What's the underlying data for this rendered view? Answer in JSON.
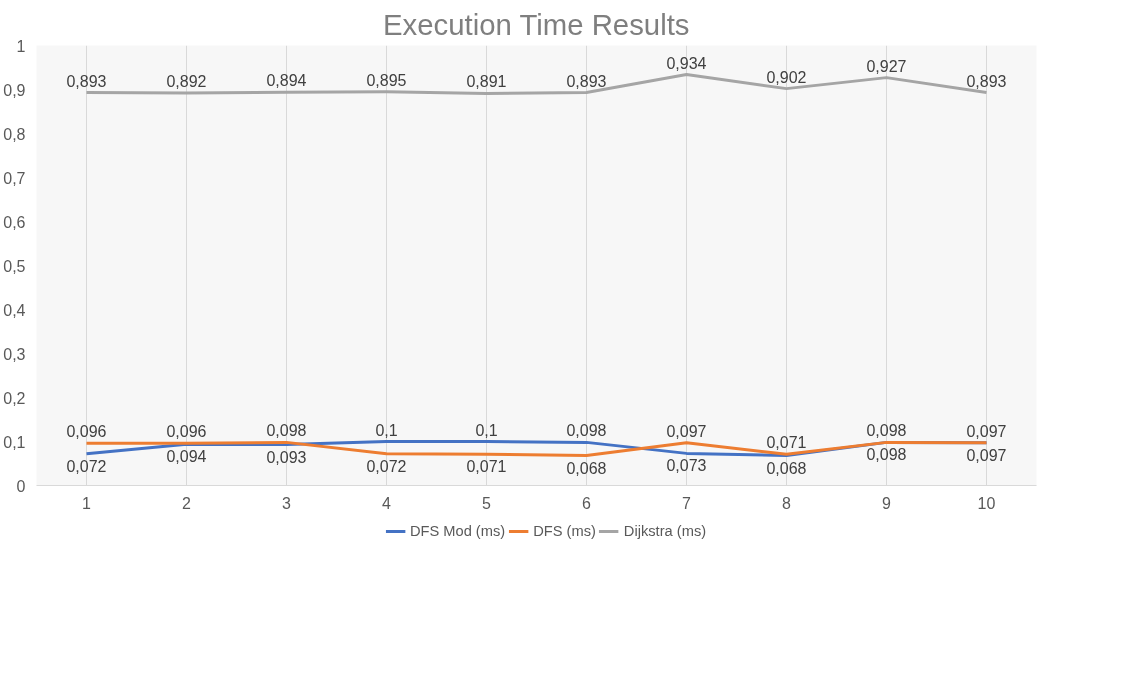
{
  "chart_data": {
    "type": "line",
    "title": "Execution Time Results",
    "categories": [
      "1",
      "2",
      "3",
      "4",
      "5",
      "6",
      "7",
      "8",
      "9",
      "10"
    ],
    "series": [
      {
        "name": "DFS Mod (ms)",
        "color": "#4472c4",
        "values": [
          0.072,
          0.094,
          0.093,
          0.1,
          0.1,
          0.098,
          0.073,
          0.068,
          0.098,
          0.097
        ],
        "value_labels": [
          "0,072",
          "0,094",
          "0,093",
          "0,1",
          "0,1",
          "0,098",
          "0,073",
          "0,068",
          "0,098",
          "0,097"
        ]
      },
      {
        "name": "DFS (ms)",
        "color": "#ed7d31",
        "values": [
          0.096,
          0.096,
          0.098,
          0.072,
          0.071,
          0.068,
          0.097,
          0.071,
          0.098,
          0.097
        ],
        "value_labels": [
          "0,096",
          "0,096",
          "0,098",
          "0,072",
          "0,071",
          "0,068",
          "0,097",
          "0,071",
          "0,098",
          "0,097"
        ]
      },
      {
        "name": "Dijkstra (ms)",
        "color": "#a5a5a5",
        "values": [
          0.893,
          0.892,
          0.894,
          0.895,
          0.891,
          0.893,
          0.934,
          0.902,
          0.927,
          0.893
        ],
        "value_labels": [
          "0,893",
          "0,892",
          "0,894",
          "0,895",
          "0,891",
          "0,893",
          "0,934",
          "0,902",
          "0,927",
          "0,893"
        ]
      }
    ],
    "ylim": [
      0,
      1
    ],
    "yticks": [
      {
        "value": 0,
        "label": "0"
      },
      {
        "value": 0.1,
        "label": "0,1"
      },
      {
        "value": 0.2,
        "label": "0,2"
      },
      {
        "value": 0.3,
        "label": "0,3"
      },
      {
        "value": 0.4,
        "label": "0,4"
      },
      {
        "value": 0.5,
        "label": "0,5"
      },
      {
        "value": 0.6,
        "label": "0,6"
      },
      {
        "value": 0.7,
        "label": "0,7"
      },
      {
        "value": 0.8,
        "label": "0,8"
      },
      {
        "value": 0.9,
        "label": "0,9"
      },
      {
        "value": 1,
        "label": "1"
      }
    ],
    "grid": "x",
    "legend": "bottom",
    "marker": "none",
    "line_style": "solid"
  }
}
